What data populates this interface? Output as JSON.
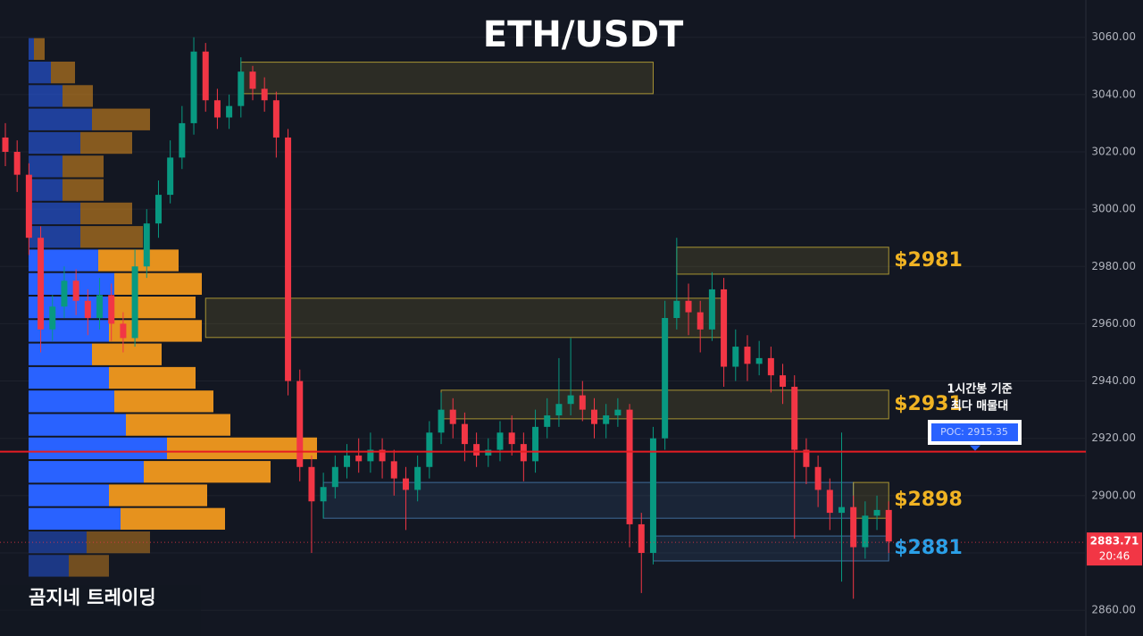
{
  "chart_data": {
    "type": "candlestick",
    "title": "ETH/USDT",
    "up_color": "#089981",
    "down_color": "#f23645",
    "open": [
      3025,
      3020,
      3012,
      2990,
      2958,
      2966,
      2975,
      2968,
      2962,
      2970,
      2960,
      2955,
      2980,
      2995,
      3005,
      3018,
      3030,
      3055,
      3038,
      3032,
      3036,
      3048,
      3042,
      3038,
      3025,
      2940,
      2910,
      2898,
      2903,
      2910,
      2914,
      2912,
      2916,
      2912,
      2906,
      2902,
      2910,
      2922,
      2930,
      2925,
      2918,
      2914,
      2916,
      2922,
      2918,
      2912,
      2924,
      2928,
      2932,
      2935,
      2930,
      2925,
      2928,
      2930,
      2890,
      2880,
      2920,
      2962,
      2968,
      2964,
      2958,
      2972,
      2945,
      2952,
      2946,
      2948,
      2942,
      2938,
      2916,
      2910,
      2902,
      2894,
      2896,
      2882,
      2893,
      2895
    ],
    "high": [
      3030,
      3024,
      3016,
      2994,
      2970,
      2980,
      2979,
      2972,
      2976,
      2974,
      2964,
      2986,
      3000,
      3010,
      3024,
      3036,
      3060,
      3058,
      3042,
      3040,
      3053,
      3050,
      3046,
      3041,
      3028,
      2944,
      2914,
      2908,
      2914,
      2918,
      2920,
      2922,
      2920,
      2916,
      2910,
      2914,
      2926,
      2936,
      2934,
      2929,
      2922,
      2920,
      2926,
      2928,
      2922,
      2930,
      2934,
      2948,
      2955,
      2940,
      2934,
      2932,
      2934,
      2932,
      2894,
      2924,
      2968,
      2990,
      2974,
      2968,
      2978,
      2976,
      2958,
      2956,
      2954,
      2952,
      2946,
      2942,
      2920,
      2914,
      2906,
      2922,
      2900,
      2898,
      2900,
      2898
    ],
    "low": [
      3015,
      3006,
      2984,
      2950,
      2954,
      2962,
      2963,
      2956,
      2958,
      2954,
      2950,
      2952,
      2976,
      2990,
      3002,
      3014,
      3026,
      3034,
      3028,
      3028,
      3032,
      3038,
      3034,
      3018,
      2935,
      2905,
      2880,
      2892,
      2899,
      2906,
      2908,
      2908,
      2906,
      2900,
      2888,
      2898,
      2906,
      2918,
      2920,
      2912,
      2910,
      2910,
      2912,
      2914,
      2905,
      2908,
      2920,
      2924,
      2928,
      2926,
      2920,
      2920,
      2924,
      2882,
      2866,
      2876,
      2916,
      2958,
      2956,
      2950,
      2954,
      2938,
      2940,
      2940,
      2942,
      2936,
      2932,
      2885,
      2904,
      2896,
      2888,
      2870,
      2864,
      2878,
      2888,
      2880
    ],
    "close": [
      3020,
      3012,
      2990,
      2958,
      2966,
      2975,
      2968,
      2962,
      2970,
      2960,
      2955,
      2980,
      2995,
      3005,
      3018,
      3030,
      3055,
      3038,
      3032,
      3036,
      3048,
      3042,
      3038,
      3025,
      2940,
      2910,
      2898,
      2903,
      2910,
      2914,
      2912,
      2916,
      2912,
      2906,
      2902,
      2910,
      2922,
      2930,
      2925,
      2918,
      2914,
      2916,
      2922,
      2918,
      2912,
      2924,
      2928,
      2932,
      2935,
      2930,
      2925,
      2928,
      2930,
      2890,
      2880,
      2920,
      2962,
      2968,
      2964,
      2958,
      2972,
      2945,
      2952,
      2946,
      2948,
      2942,
      2938,
      2916,
      2910,
      2902,
      2894,
      2896,
      2882,
      2893,
      2895,
      2884
    ],
    "ylim": [
      2851,
      3073
    ],
    "yticks": [
      {
        "value": 2860,
        "label": "2860.00"
      },
      {
        "value": 2880,
        "label": "2880.00"
      },
      {
        "value": 2900,
        "label": "2900.00"
      },
      {
        "value": 2920,
        "label": "2920.00"
      },
      {
        "value": 2940,
        "label": "2940.00"
      },
      {
        "value": 2960,
        "label": "2960.00"
      },
      {
        "value": 2980,
        "label": "2980.00"
      },
      {
        "value": 3000,
        "label": "3000.00"
      },
      {
        "value": 3020,
        "label": "3020.00"
      },
      {
        "value": 3040,
        "label": "3040.00"
      },
      {
        "value": 3060,
        "label": "3060.00"
      }
    ],
    "zones": [
      {
        "start": 20,
        "end": 55,
        "low": 3040.3,
        "high": 3051.3,
        "color": "#c9b037"
      },
      {
        "start": 57,
        "end": 75,
        "low": 2977.3,
        "high": 2986.7,
        "color": "#c9b037",
        "label": "$2981",
        "label_color": "#f0b323"
      },
      {
        "start": 17,
        "end": 61,
        "low": 2955.2,
        "high": 2968.9,
        "color": "#c9b037"
      },
      {
        "start": 37,
        "end": 75,
        "low": 2926.8,
        "high": 2936.8,
        "color": "#c9b037",
        "label": "$2931",
        "label_color": "#f0b323"
      },
      {
        "start": 27,
        "end": 72,
        "low": 2892.1,
        "high": 2904.6,
        "color": "#4a7fb5"
      },
      {
        "start": 72,
        "end": 75,
        "low": 2892.1,
        "high": 2904.6,
        "color": "#c9b037",
        "label": "$2898",
        "label_color": "#f0b323"
      },
      {
        "start": 55,
        "end": 75,
        "low": 2877.2,
        "high": 2885.9,
        "color": "#4a7fb5",
        "label": "$2881",
        "label_color": "#2ba0e8"
      }
    ],
    "volume_profile": {
      "bins": [
        3060,
        3051.8,
        3043.6,
        3035.4,
        3027.2,
        3019,
        3010.8,
        3002.6,
        2994.4,
        2986.2,
        2978,
        2969.8,
        2961.6,
        2953.4,
        2945.2,
        2937,
        2928.8,
        2920.6,
        2912.4,
        2904.2,
        2896,
        2887.8,
        2879.6,
        2871.4
      ],
      "buy": [
        6,
        25,
        38,
        71,
        58,
        38,
        38,
        58,
        58,
        78,
        96,
        90,
        90,
        71,
        90,
        96,
        109,
        155,
        129,
        90,
        103,
        65,
        45
      ],
      "sell": [
        12,
        27,
        34,
        65,
        58,
        46,
        46,
        58,
        70,
        90,
        98,
        97,
        104,
        78,
        97,
        111,
        117,
        168,
        142,
        110,
        117,
        71,
        45
      ],
      "buy_color": "#2962ff",
      "sell_color": "#e6921e"
    },
    "poc": {
      "value": 2915.35,
      "label": "POC: 2915.35",
      "note": [
        "1시간봉 기준",
        "최다 매물대"
      ],
      "color": "#e51c23"
    },
    "last_price": {
      "value": 2883.71,
      "label": "2883.71",
      "time": "20:46",
      "color": "#f23645"
    },
    "watermark": "곰지네 트레이딩"
  }
}
